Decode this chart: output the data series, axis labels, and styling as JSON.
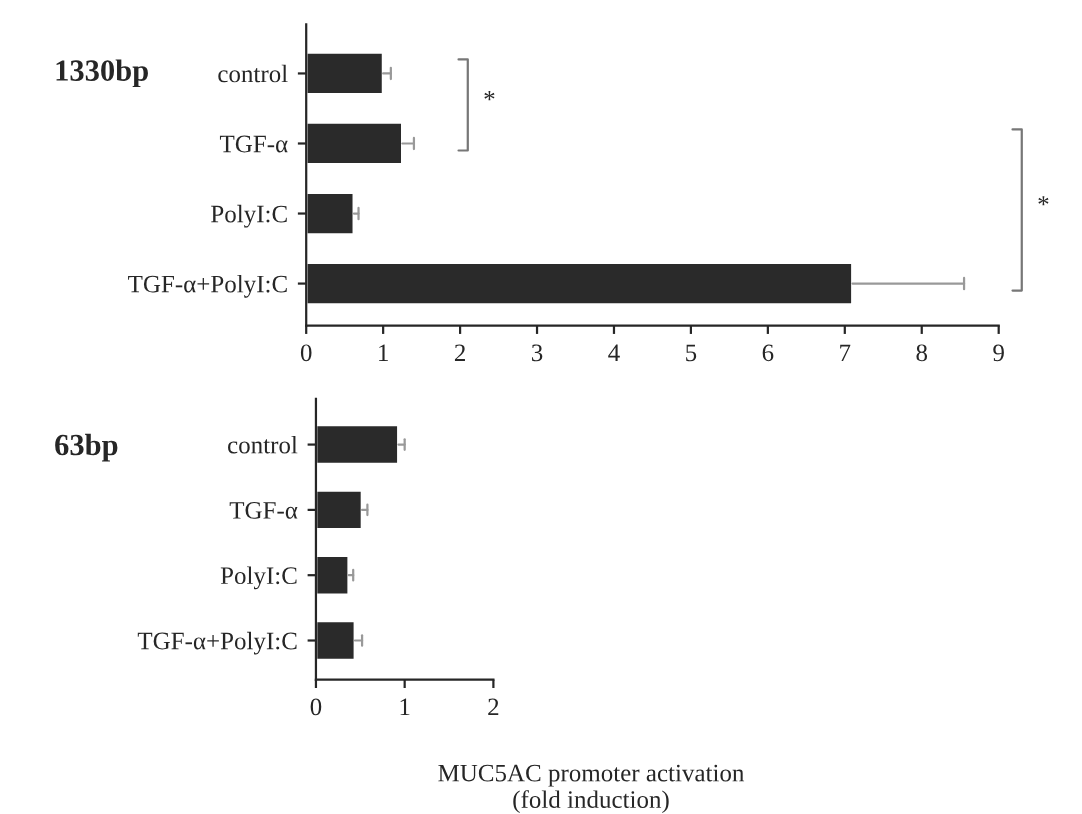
{
  "chart_data": [
    {
      "type": "bar",
      "orientation": "horizontal",
      "categories": [
        "control",
        "TGF-α",
        "PolyI:C",
        "TGF-α+PolyI:C"
      ],
      "series": [
        {
          "color": "#2a2a2a",
          "values": [
            1.0,
            1.25,
            0.62,
            7.1
          ],
          "errors": [
            [
              1.0,
              1.1
            ],
            [
              1.25,
              1.4
            ],
            [
              0.62,
              0.68
            ],
            [
              7.1,
              8.55
            ]
          ]
        }
      ],
      "xlim": [
        0,
        9
      ],
      "xticks": [
        0,
        1,
        2,
        3,
        4,
        5,
        6,
        7,
        8,
        9
      ],
      "annotations": [
        "1330bp",
        "*",
        "*"
      ]
    },
    {
      "type": "bar",
      "orientation": "horizontal",
      "categories": [
        "control",
        "TGF-α",
        "PolyI:C",
        "TGF-α+PolyI:C"
      ],
      "series": [
        {
          "color": "#2a2a2a",
          "values": [
            0.93,
            0.52,
            0.37,
            0.44
          ],
          "errors": [
            [
              0.93,
              1.0
            ],
            [
              0.52,
              0.58
            ],
            [
              0.37,
              0.42
            ],
            [
              0.44,
              0.52
            ]
          ]
        }
      ],
      "xlim": [
        0,
        2
      ],
      "xticks": [
        0,
        1,
        2
      ],
      "xlabel": "MUC5AC promoter activation\n(fold induction)",
      "annotations": [
        "63bp"
      ]
    }
  ]
}
